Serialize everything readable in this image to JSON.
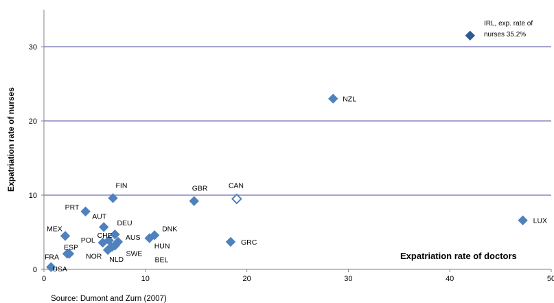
{
  "chart_data": {
    "type": "scatter",
    "xlabel": "Expatriation rate of doctors",
    "ylabel": "Expatriation rate of nurses",
    "xlim": [
      0,
      50
    ],
    "ylim": [
      0,
      35
    ],
    "x_ticks": [
      "0",
      "10",
      "20",
      "30",
      "40",
      "50"
    ],
    "y_ticks": [
      "0",
      "10",
      "20",
      "30"
    ],
    "grid": "horizontal",
    "source": "Source: Dumont and Zurn (2007)",
    "note": "IRL, exp. rate of nurses 35.2%",
    "colors": {
      "marker": "#4f81bd",
      "marker_dark": "#2e5a8e",
      "grid": "#4b4ba3",
      "axis": "#808080"
    },
    "points": [
      {
        "label": "IRL",
        "x": 42.0,
        "y": 31.5,
        "style": "dark"
      },
      {
        "label": "NZL",
        "x": 28.5,
        "y": 23.0
      },
      {
        "label": "FIN",
        "x": 6.8,
        "y": 9.6
      },
      {
        "label": "GBR",
        "x": 14.8,
        "y": 9.2
      },
      {
        "label": "CAN",
        "x": 19.0,
        "y": 9.5,
        "style": "hollow"
      },
      {
        "label": "PRT",
        "x": 4.1,
        "y": 7.8
      },
      {
        "label": "LUX",
        "x": 47.2,
        "y": 6.6
      },
      {
        "label": "AUT",
        "x": 5.9,
        "y": 5.7
      },
      {
        "label": "DEU",
        "x": 7.0,
        "y": 4.7
      },
      {
        "label": "MEX",
        "x": 2.1,
        "y": 4.5
      },
      {
        "label": "DNK",
        "x": 10.9,
        "y": 4.6
      },
      {
        "label": "CHE",
        "x": 6.4,
        "y": 3.9
      },
      {
        "label": "AUS",
        "x": 7.3,
        "y": 3.7
      },
      {
        "label": "HUN",
        "x": 10.4,
        "y": 4.2
      },
      {
        "label": "POL",
        "x": 5.8,
        "y": 3.6
      },
      {
        "label": "GRC",
        "x": 18.4,
        "y": 3.7
      },
      {
        "label": "SWE",
        "x": 7.0,
        "y": 3.2
      },
      {
        "label": "ESP",
        "x": 2.5,
        "y": 2.1
      },
      {
        "label": "NLD",
        "x": 6.3,
        "y": 2.6
      },
      {
        "label": "NOR",
        "x": 6.7,
        "y": 3.0
      },
      {
        "label": "FRA",
        "x": 2.3,
        "y": 2.1
      },
      {
        "label": "USA",
        "x": 0.7,
        "y": 0.3
      },
      {
        "label": "BEL",
        "x": 6.6,
        "y": 3.1
      }
    ]
  }
}
